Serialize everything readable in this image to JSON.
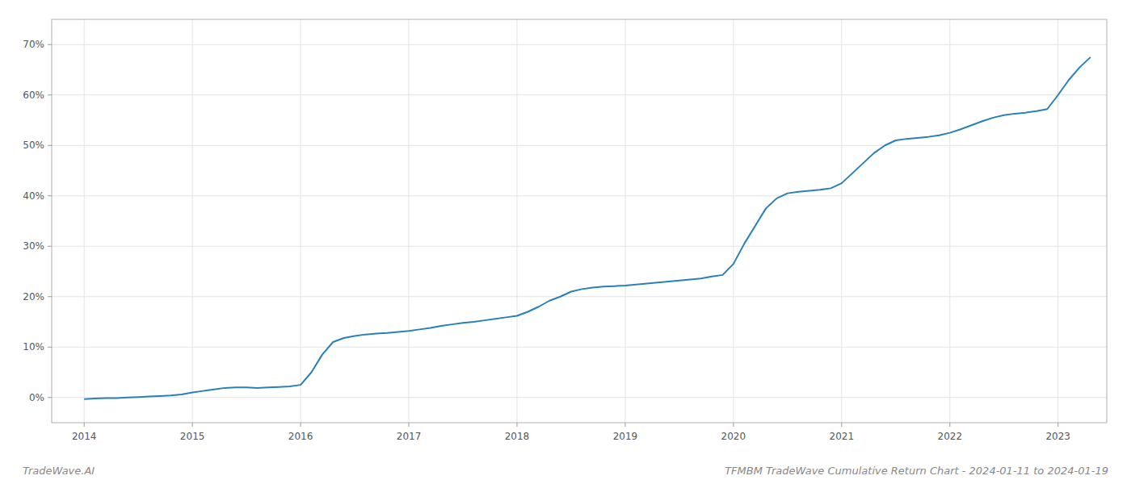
{
  "chart_data": {
    "type": "line",
    "x": [
      2014.0,
      2014.1,
      2014.2,
      2014.3,
      2014.4,
      2014.5,
      2014.6,
      2014.7,
      2014.8,
      2014.9,
      2015.0,
      2015.1,
      2015.2,
      2015.3,
      2015.4,
      2015.5,
      2015.6,
      2015.7,
      2015.8,
      2015.9,
      2016.0,
      2016.1,
      2016.2,
      2016.3,
      2016.4,
      2016.5,
      2016.6,
      2016.7,
      2016.8,
      2016.9,
      2017.0,
      2017.1,
      2017.2,
      2017.3,
      2017.4,
      2017.5,
      2017.6,
      2017.7,
      2017.8,
      2017.9,
      2018.0,
      2018.1,
      2018.2,
      2018.3,
      2018.4,
      2018.5,
      2018.6,
      2018.7,
      2018.8,
      2018.9,
      2019.0,
      2019.1,
      2019.2,
      2019.3,
      2019.4,
      2019.5,
      2019.6,
      2019.7,
      2019.8,
      2019.9,
      2020.0,
      2020.1,
      2020.2,
      2020.3,
      2020.4,
      2020.5,
      2020.6,
      2020.7,
      2020.8,
      2020.9,
      2021.0,
      2021.1,
      2021.2,
      2021.3,
      2021.4,
      2021.5,
      2021.6,
      2021.7,
      2021.8,
      2021.9,
      2022.0,
      2022.1,
      2022.2,
      2022.3,
      2022.4,
      2022.5,
      2022.6,
      2022.7,
      2022.8,
      2022.9,
      2023.0,
      2023.1,
      2023.2,
      2023.3
    ],
    "values": [
      -0.3,
      -0.2,
      -0.1,
      -0.1,
      0.0,
      0.1,
      0.2,
      0.3,
      0.4,
      0.6,
      1.0,
      1.3,
      1.6,
      1.9,
      2.0,
      2.0,
      1.9,
      2.0,
      2.1,
      2.2,
      2.5,
      5.0,
      8.5,
      11.0,
      11.8,
      12.2,
      12.5,
      12.7,
      12.8,
      13.0,
      13.2,
      13.5,
      13.8,
      14.2,
      14.5,
      14.8,
      15.0,
      15.3,
      15.6,
      15.9,
      16.2,
      17.0,
      18.0,
      19.2,
      20.0,
      21.0,
      21.5,
      21.8,
      22.0,
      22.1,
      22.2,
      22.4,
      22.6,
      22.8,
      23.0,
      23.2,
      23.4,
      23.6,
      24.0,
      24.3,
      26.5,
      30.5,
      34.0,
      37.5,
      39.5,
      40.5,
      40.8,
      41.0,
      41.2,
      41.5,
      42.5,
      44.5,
      46.5,
      48.5,
      50.0,
      51.0,
      51.3,
      51.5,
      51.7,
      52.0,
      52.5,
      53.2,
      54.0,
      54.8,
      55.5,
      56.0,
      56.3,
      56.5,
      56.8,
      57.2,
      60.0,
      63.0,
      65.5,
      67.5
    ],
    "color": "#2980b9",
    "xlim": [
      2013.7,
      2023.45
    ],
    "ylim": [
      -5,
      75
    ],
    "xticks": [
      2014,
      2015,
      2016,
      2017,
      2018,
      2019,
      2020,
      2021,
      2022,
      2023
    ],
    "yticks": [
      {
        "value": 0,
        "label": "0%"
      },
      {
        "value": 10,
        "label": "10%"
      },
      {
        "value": 20,
        "label": "20%"
      },
      {
        "value": 30,
        "label": "30%"
      },
      {
        "value": 40,
        "label": "40%"
      },
      {
        "value": 50,
        "label": "50%"
      },
      {
        "value": 60,
        "label": "60%"
      },
      {
        "value": 70,
        "label": "70%"
      }
    ],
    "grid": true,
    "annotations": [
      "TradeWave.AI",
      "TFMBM TradeWave Cumulative Return Chart - 2024-01-11 to 2024-01-19"
    ]
  }
}
